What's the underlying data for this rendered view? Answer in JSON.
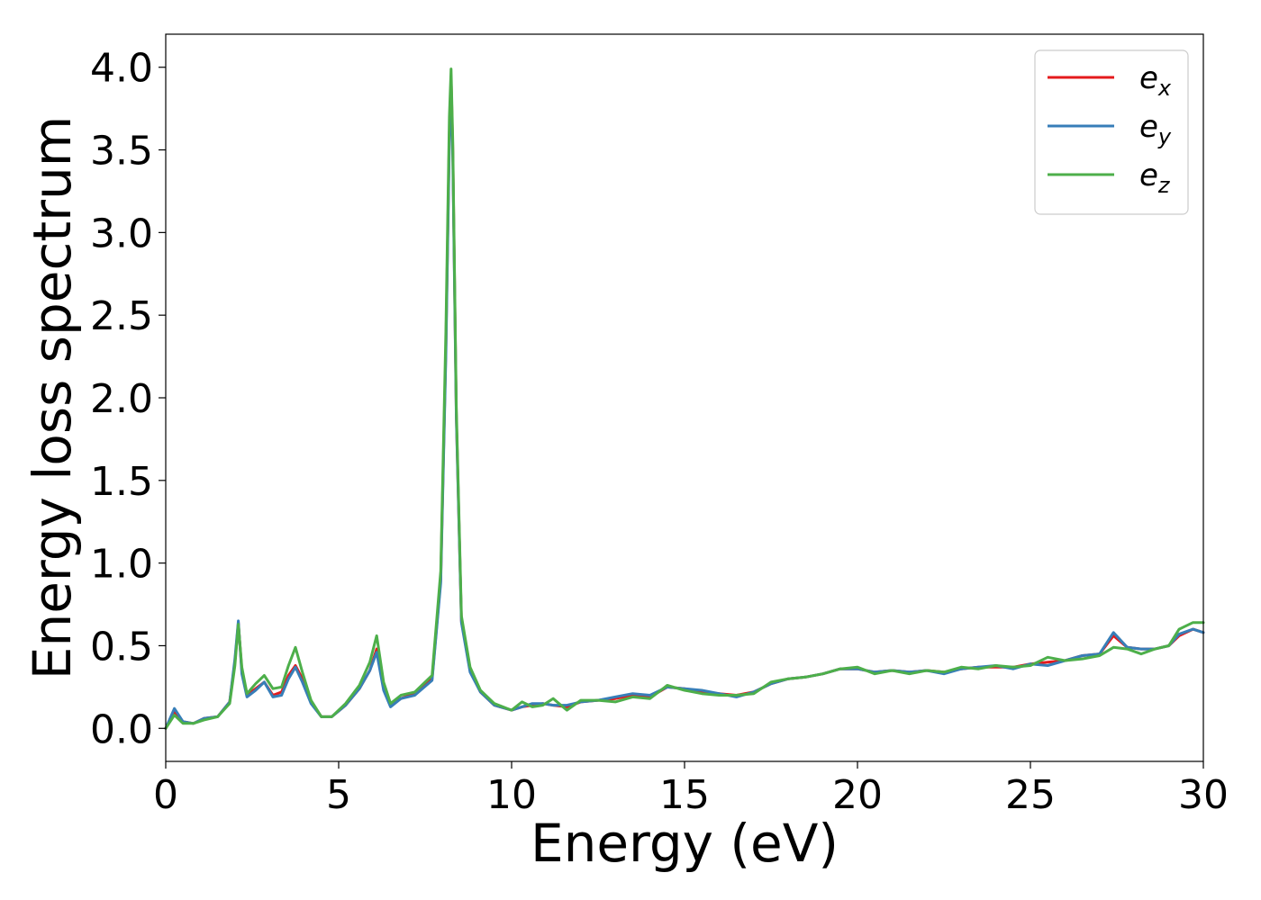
{
  "chart_data": {
    "type": "line",
    "title": "",
    "xlabel": "Energy (eV)",
    "ylabel": "Energy loss spectrum",
    "xlim": [
      0,
      30
    ],
    "ylim": [
      -0.2,
      4.2
    ],
    "xticks": [
      0,
      5,
      10,
      15,
      20,
      25,
      30
    ],
    "xtick_labels": [
      "0",
      "5",
      "10",
      "15",
      "20",
      "25",
      "30"
    ],
    "yticks": [
      0.0,
      0.5,
      1.0,
      1.5,
      2.0,
      2.5,
      3.0,
      3.5,
      4.0
    ],
    "ytick_labels": [
      "0.0",
      "0.5",
      "1.0",
      "1.5",
      "2.0",
      "2.5",
      "3.0",
      "3.5",
      "4.0"
    ],
    "grid": false,
    "legend_position": "top-right",
    "series": [
      {
        "name": "e_x",
        "legend_main": "e",
        "legend_sub": "x",
        "color": "#e41a1c",
        "x": [
          0,
          0.25,
          0.5,
          0.8,
          1.1,
          1.5,
          1.85,
          2.0,
          2.1,
          2.2,
          2.35,
          2.6,
          2.85,
          3.1,
          3.35,
          3.55,
          3.75,
          3.95,
          4.2,
          4.5,
          4.8,
          5.2,
          5.6,
          5.9,
          6.1,
          6.3,
          6.5,
          6.8,
          7.2,
          7.7,
          7.95,
          8.1,
          8.2,
          8.25,
          8.3,
          8.4,
          8.55,
          8.8,
          9.1,
          9.5,
          10.0,
          10.3,
          10.6,
          10.9,
          11.2,
          11.6,
          12.0,
          12.5,
          13.0,
          13.5,
          14.0,
          14.5,
          15.0,
          15.5,
          16.0,
          16.5,
          17.0,
          17.5,
          18.0,
          18.5,
          19.0,
          19.5,
          20.0,
          20.5,
          21.0,
          21.5,
          22.0,
          22.5,
          23.0,
          23.5,
          24.0,
          24.5,
          25.0,
          25.5,
          26.0,
          26.5,
          27.0,
          27.4,
          27.8,
          28.2,
          28.6,
          29.0,
          29.3,
          29.7,
          30.0
        ],
        "y": [
          0.0,
          0.1,
          0.04,
          0.03,
          0.06,
          0.07,
          0.16,
          0.4,
          0.64,
          0.35,
          0.2,
          0.24,
          0.28,
          0.2,
          0.22,
          0.32,
          0.38,
          0.3,
          0.16,
          0.07,
          0.07,
          0.14,
          0.24,
          0.35,
          0.48,
          0.24,
          0.14,
          0.18,
          0.21,
          0.3,
          0.9,
          2.3,
          3.6,
          3.94,
          3.5,
          1.9,
          0.65,
          0.35,
          0.22,
          0.14,
          0.11,
          0.13,
          0.14,
          0.15,
          0.14,
          0.13,
          0.16,
          0.17,
          0.18,
          0.2,
          0.19,
          0.25,
          0.24,
          0.22,
          0.21,
          0.2,
          0.22,
          0.27,
          0.3,
          0.31,
          0.33,
          0.36,
          0.36,
          0.34,
          0.35,
          0.34,
          0.35,
          0.34,
          0.36,
          0.37,
          0.37,
          0.37,
          0.39,
          0.4,
          0.41,
          0.44,
          0.45,
          0.56,
          0.49,
          0.48,
          0.48,
          0.5,
          0.56,
          0.6,
          0.58
        ]
      },
      {
        "name": "e_y",
        "legend_main": "e",
        "legend_sub": "y",
        "color": "#377eb8",
        "x": [
          0,
          0.25,
          0.5,
          0.8,
          1.1,
          1.5,
          1.85,
          2.0,
          2.1,
          2.2,
          2.35,
          2.6,
          2.85,
          3.1,
          3.35,
          3.55,
          3.75,
          3.95,
          4.2,
          4.5,
          4.8,
          5.2,
          5.6,
          5.9,
          6.1,
          6.3,
          6.5,
          6.8,
          7.2,
          7.7,
          7.95,
          8.1,
          8.2,
          8.25,
          8.3,
          8.4,
          8.55,
          8.8,
          9.1,
          9.5,
          10.0,
          10.3,
          10.6,
          10.9,
          11.2,
          11.6,
          12.0,
          12.5,
          13.0,
          13.5,
          14.0,
          14.5,
          15.0,
          15.5,
          16.0,
          16.5,
          17.0,
          17.5,
          18.0,
          18.5,
          19.0,
          19.5,
          20.0,
          20.5,
          21.0,
          21.5,
          22.0,
          22.5,
          23.0,
          23.5,
          24.0,
          24.5,
          25.0,
          25.5,
          26.0,
          26.5,
          27.0,
          27.4,
          27.8,
          28.2,
          28.6,
          29.0,
          29.3,
          29.7,
          30.0
        ],
        "y": [
          0.0,
          0.12,
          0.04,
          0.03,
          0.06,
          0.07,
          0.16,
          0.42,
          0.65,
          0.33,
          0.19,
          0.23,
          0.28,
          0.19,
          0.2,
          0.3,
          0.37,
          0.28,
          0.15,
          0.07,
          0.07,
          0.14,
          0.24,
          0.35,
          0.46,
          0.23,
          0.13,
          0.18,
          0.2,
          0.29,
          0.88,
          2.25,
          3.55,
          3.9,
          3.45,
          1.88,
          0.64,
          0.34,
          0.22,
          0.14,
          0.11,
          0.13,
          0.15,
          0.15,
          0.14,
          0.14,
          0.16,
          0.17,
          0.19,
          0.21,
          0.2,
          0.25,
          0.24,
          0.23,
          0.21,
          0.19,
          0.22,
          0.27,
          0.3,
          0.31,
          0.33,
          0.36,
          0.36,
          0.34,
          0.35,
          0.34,
          0.35,
          0.33,
          0.36,
          0.37,
          0.38,
          0.36,
          0.39,
          0.38,
          0.41,
          0.44,
          0.45,
          0.58,
          0.49,
          0.48,
          0.48,
          0.5,
          0.57,
          0.6,
          0.58
        ]
      },
      {
        "name": "e_z",
        "legend_main": "e",
        "legend_sub": "z",
        "color": "#4daf4a",
        "x": [
          0,
          0.25,
          0.5,
          0.8,
          1.1,
          1.5,
          1.85,
          2.0,
          2.1,
          2.2,
          2.35,
          2.6,
          2.85,
          3.1,
          3.35,
          3.55,
          3.75,
          3.95,
          4.2,
          4.5,
          4.8,
          5.2,
          5.6,
          5.9,
          6.1,
          6.3,
          6.5,
          6.8,
          7.2,
          7.7,
          7.95,
          8.1,
          8.2,
          8.25,
          8.3,
          8.4,
          8.55,
          8.8,
          9.1,
          9.5,
          10.0,
          10.3,
          10.6,
          10.9,
          11.2,
          11.6,
          12.0,
          12.5,
          13.0,
          13.5,
          14.0,
          14.5,
          15.0,
          15.5,
          16.0,
          16.5,
          17.0,
          17.5,
          18.0,
          18.5,
          19.0,
          19.5,
          20.0,
          20.5,
          21.0,
          21.5,
          22.0,
          22.5,
          23.0,
          23.5,
          24.0,
          24.5,
          25.0,
          25.5,
          26.0,
          26.5,
          27.0,
          27.4,
          27.8,
          28.2,
          28.6,
          29.0,
          29.3,
          29.7,
          30.0
        ],
        "y": [
          0.0,
          0.08,
          0.03,
          0.03,
          0.05,
          0.07,
          0.15,
          0.38,
          0.63,
          0.37,
          0.21,
          0.27,
          0.32,
          0.24,
          0.25,
          0.38,
          0.49,
          0.34,
          0.17,
          0.07,
          0.07,
          0.15,
          0.26,
          0.4,
          0.56,
          0.28,
          0.15,
          0.2,
          0.22,
          0.32,
          0.95,
          2.4,
          3.7,
          3.99,
          3.55,
          1.95,
          0.68,
          0.37,
          0.23,
          0.15,
          0.11,
          0.16,
          0.13,
          0.14,
          0.18,
          0.11,
          0.17,
          0.17,
          0.16,
          0.19,
          0.18,
          0.26,
          0.23,
          0.21,
          0.2,
          0.2,
          0.21,
          0.28,
          0.3,
          0.31,
          0.33,
          0.36,
          0.37,
          0.33,
          0.35,
          0.33,
          0.35,
          0.34,
          0.37,
          0.36,
          0.38,
          0.37,
          0.38,
          0.43,
          0.41,
          0.42,
          0.44,
          0.49,
          0.48,
          0.45,
          0.48,
          0.5,
          0.6,
          0.64,
          0.64
        ]
      }
    ]
  }
}
